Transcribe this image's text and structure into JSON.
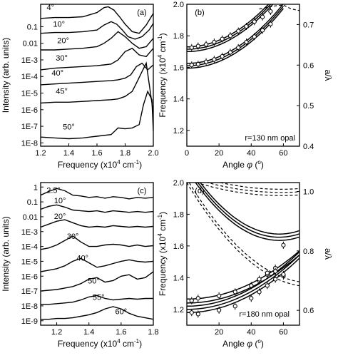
{
  "chart_data": [
    {
      "panel": "(a)",
      "type": "line",
      "xlabel": "Frequency (x10",
      "xlabel_sup": "4",
      "xlabel_unit": " cm",
      "xlabel_unit_sup": "-1",
      "xlabel_end": ")",
      "ylabel": "Intensity (arb. units)",
      "xlim": [
        1.2,
        2.0
      ],
      "ylim_log10": [
        -8.2,
        0.35
      ],
      "yscale": "log",
      "x_ticks": [
        "1.2",
        "1.4",
        "1.6",
        "1.8",
        "2.0"
      ],
      "y_ticks": [
        "0.1",
        "0.01",
        "1E-3",
        "1E-4",
        "1E-5",
        "1E-6",
        "1E-7",
        "1E-8"
      ],
      "series": [
        {
          "name": "4°",
          "x": [
            1.2,
            1.3,
            1.4,
            1.5,
            1.6,
            1.65,
            1.68,
            1.72,
            1.76,
            1.8,
            1.85,
            1.9,
            1.95,
            2.0
          ],
          "y_log10": [
            -0.5,
            -0.45,
            -0.45,
            -0.4,
            -0.15,
            0.15,
            0.2,
            0.0,
            -0.4,
            -0.85,
            -1.3,
            -1.4,
            -0.9,
            -0.2
          ]
        },
        {
          "name": "10°",
          "x": [
            1.2,
            1.3,
            1.4,
            1.5,
            1.6,
            1.65,
            1.7,
            1.74,
            1.78,
            1.82,
            1.87,
            1.92,
            1.97,
            2.0
          ],
          "y_log10": [
            -1.4,
            -1.35,
            -1.35,
            -1.3,
            -1.2,
            -0.9,
            -0.7,
            -0.85,
            -1.2,
            -1.6,
            -1.75,
            -1.6,
            -1.2,
            -0.8
          ]
        },
        {
          "name": "20°",
          "x": [
            1.2,
            1.3,
            1.4,
            1.5,
            1.6,
            1.65,
            1.7,
            1.75,
            1.8,
            1.85,
            1.9,
            1.95,
            2.0
          ],
          "y_log10": [
            -2.4,
            -2.4,
            -2.35,
            -2.3,
            -2.2,
            -2.0,
            -1.7,
            -1.3,
            -1.6,
            -2.0,
            -2.3,
            -2.2,
            -1.7
          ]
        },
        {
          "name": "30°",
          "x": [
            1.2,
            1.3,
            1.4,
            1.5,
            1.6,
            1.65,
            1.7,
            1.75,
            1.8,
            1.85,
            1.9,
            1.95,
            2.0
          ],
          "y_log10": [
            -3.6,
            -3.5,
            -3.45,
            -3.4,
            -3.35,
            -3.3,
            -3.25,
            -3.0,
            -2.5,
            -2.3,
            -2.7,
            -2.8,
            -2.3
          ]
        },
        {
          "name": "40°",
          "x": [
            1.2,
            1.3,
            1.4,
            1.5,
            1.6,
            1.7,
            1.75,
            1.8,
            1.84,
            1.88,
            1.92,
            1.96,
            2.0
          ],
          "y_log10": [
            -4.5,
            -4.45,
            -4.4,
            -4.35,
            -4.3,
            -4.25,
            -4.2,
            -4.1,
            -3.9,
            -3.4,
            -3.2,
            -3.6,
            -3.3
          ]
        },
        {
          "name": "45°",
          "x": [
            1.2,
            1.3,
            1.4,
            1.5,
            1.6,
            1.7,
            1.75,
            1.8,
            1.85,
            1.88,
            1.92,
            1.95,
            2.0
          ],
          "y_log10": [
            -5.6,
            -5.55,
            -5.55,
            -5.5,
            -5.45,
            -5.4,
            -5.35,
            -5.2,
            -4.9,
            -4.4,
            -3.7,
            -3.2,
            -6.2
          ]
        },
        {
          "name": "50°",
          "x": [
            1.2,
            1.3,
            1.4,
            1.5,
            1.6,
            1.7,
            1.75,
            1.8,
            1.85,
            1.9,
            1.93,
            1.96,
            1.99,
            2.0
          ],
          "y_log10": [
            -7.65,
            -7.7,
            -7.75,
            -7.7,
            -7.6,
            -7.5,
            -7.1,
            -7.15,
            -7.1,
            -6.9,
            -5.7,
            -4.9,
            -5.4,
            -7.3
          ]
        }
      ]
    },
    {
      "panel": "(b)",
      "type": "line",
      "xlabel": "Angle",
      "xlabel_phi": "φ",
      "xlabel_unit": "(",
      "xlabel_deg": "o",
      "xlabel_end": ")",
      "ylabel": "Frequency (x10",
      "ylabel_sup": "4",
      "ylabel_unit": " cm",
      "ylabel_unit_sup": "-1",
      "ylabel_end": ")",
      "y2label": "a/λ",
      "annotation": "r=130 nm opal",
      "xlim": [
        0,
        70
      ],
      "ylim": [
        1.1,
        2.0
      ],
      "y2lim": [
        0.4,
        0.75
      ],
      "x_ticks": [
        "0",
        "20",
        "40",
        "60"
      ],
      "y_ticks": [
        "1.2",
        "1.4",
        "1.6",
        "1.8",
        "2.0"
      ],
      "y2_ticks": [
        "0.4",
        "0.5",
        "0.6",
        "0.7"
      ],
      "upper_points": {
        "x": [
          3,
          7,
          12,
          17,
          22,
          27,
          32,
          37,
          42,
          47,
          52
        ],
        "y": [
          1.725,
          1.735,
          1.745,
          1.76,
          1.78,
          1.8,
          1.83,
          1.86,
          1.89,
          1.92,
          1.955
        ]
      },
      "lower_points": {
        "x": [
          3,
          7,
          12,
          17,
          22,
          27,
          32,
          37,
          42,
          47,
          52
        ],
        "y": [
          1.615,
          1.62,
          1.635,
          1.65,
          1.67,
          1.695,
          1.725,
          1.76,
          1.795,
          1.835,
          1.875
        ]
      },
      "curves_upper_y0": [
        1.7,
        1.715,
        1.73
      ],
      "curves_lower_y0": [
        1.595,
        1.61,
        1.625
      ],
      "dashed_top": {
        "x": [
          45,
          50,
          55,
          60,
          65,
          70
        ],
        "y": [
          1.97,
          1.98,
          1.99,
          1.995,
          1.97,
          1.96
        ]
      }
    },
    {
      "panel": "(c)",
      "type": "line",
      "xlabel": "Frequency (x10",
      "xlabel_sup": "4",
      "xlabel_unit": " cm",
      "xlabel_unit_sup": "-1",
      "xlabel_end": ")",
      "ylabel": "Intensity (arb. units)",
      "xlim": [
        1.1,
        1.8
      ],
      "ylim_log10": [
        -9.3,
        0.3
      ],
      "yscale": "log",
      "x_ticks": [
        "1.2",
        "1.4",
        "1.6",
        "1.8"
      ],
      "y_ticks": [
        "1",
        "0.1",
        "0.01",
        "1E-3",
        "1E-4",
        "1E-5",
        "1E-6",
        "1E-7",
        "1E-8",
        "1E-9"
      ],
      "series": [
        {
          "name": "2.5°",
          "x": [
            1.1,
            1.15,
            1.2,
            1.25,
            1.3,
            1.35,
            1.4,
            1.45,
            1.5,
            1.55,
            1.6,
            1.65,
            1.7,
            1.75,
            1.8
          ],
          "y_log10": [
            -0.55,
            -0.3,
            -0.1,
            -0.25,
            -0.55,
            -0.6,
            -0.7,
            -0.65,
            -0.75,
            -0.65,
            -0.7,
            -0.8,
            -0.7,
            -0.75,
            -0.7
          ]
        },
        {
          "name": "10°",
          "x": [
            1.1,
            1.15,
            1.2,
            1.25,
            1.3,
            1.35,
            1.4,
            1.45,
            1.5,
            1.55,
            1.6,
            1.65,
            1.7,
            1.75,
            1.8
          ],
          "y_log10": [
            -1.5,
            -1.3,
            -1.2,
            -1.35,
            -1.55,
            -1.6,
            -1.65,
            -1.6,
            -1.7,
            -1.6,
            -1.65,
            -1.7,
            -1.65,
            -1.7,
            -1.65
          ]
        },
        {
          "name": "20°",
          "x": [
            1.1,
            1.15,
            1.2,
            1.25,
            1.3,
            1.35,
            1.4,
            1.45,
            1.5,
            1.55,
            1.6,
            1.65,
            1.7,
            1.75,
            1.8
          ],
          "y_log10": [
            -2.7,
            -2.5,
            -2.3,
            -2.2,
            -2.4,
            -2.6,
            -2.7,
            -2.65,
            -2.7,
            -2.6,
            -2.65,
            -2.7,
            -2.65,
            -2.7,
            -2.65
          ]
        },
        {
          "name": "30°",
          "x": [
            1.1,
            1.15,
            1.2,
            1.25,
            1.3,
            1.35,
            1.4,
            1.45,
            1.5,
            1.55,
            1.6,
            1.65,
            1.7,
            1.75,
            1.8
          ],
          "y_log10": [
            -4.2,
            -4.1,
            -3.9,
            -3.6,
            -3.3,
            -3.7,
            -4.0,
            -4.0,
            -3.9,
            -3.85,
            -3.9,
            -4.0,
            -3.9,
            -4.0,
            -3.95
          ]
        },
        {
          "name": "40°",
          "x": [
            1.1,
            1.15,
            1.2,
            1.25,
            1.3,
            1.35,
            1.4,
            1.45,
            1.5,
            1.55,
            1.6,
            1.65,
            1.7,
            1.75,
            1.8
          ],
          "y_log10": [
            -5.7,
            -5.6,
            -5.5,
            -5.3,
            -5.0,
            -4.8,
            -5.1,
            -5.4,
            -5.3,
            -5.15,
            -5.0,
            -4.9,
            -5.0,
            -5.05,
            -5.0
          ]
        },
        {
          "name": "50°",
          "x": [
            1.1,
            1.15,
            1.2,
            1.25,
            1.3,
            1.35,
            1.4,
            1.45,
            1.5,
            1.55,
            1.6,
            1.65,
            1.7,
            1.75,
            1.8
          ],
          "y_log10": [
            -7.0,
            -6.95,
            -6.9,
            -6.8,
            -6.7,
            -6.5,
            -6.2,
            -6.1,
            -6.4,
            -6.3,
            -6.0,
            -5.9,
            -6.2,
            -6.1,
            -5.7
          ]
        },
        {
          "name": "55°",
          "x": [
            1.1,
            1.15,
            1.2,
            1.25,
            1.3,
            1.35,
            1.4,
            1.45,
            1.5,
            1.55,
            1.6,
            1.65,
            1.7,
            1.75,
            1.8
          ],
          "y_log10": [
            -7.9,
            -7.9,
            -7.85,
            -7.8,
            -7.75,
            -7.6,
            -7.4,
            -7.3,
            -7.5,
            -7.6,
            -7.55,
            -7.5,
            -7.55,
            -7.5,
            -7.5
          ]
        },
        {
          "name": "60°",
          "x": [
            1.1,
            1.15,
            1.2,
            1.25,
            1.3,
            1.35,
            1.4,
            1.45,
            1.5,
            1.55,
            1.6,
            1.65,
            1.7,
            1.75,
            1.8
          ],
          "y_log10": [
            -8.9,
            -8.9,
            -8.85,
            -8.85,
            -8.8,
            -8.7,
            -8.6,
            -8.45,
            -8.2,
            -8.05,
            -8.2,
            -8.5,
            -8.7,
            -8.8,
            -8.9
          ]
        }
      ]
    },
    {
      "panel": "(d)",
      "type": "line",
      "xlabel": "Angle",
      "xlabel_phi": "φ",
      "xlabel_unit": "(",
      "xlabel_deg": "o",
      "xlabel_end": ")",
      "ylabel": "Frequency (x10",
      "ylabel_sup": "4",
      "ylabel_unit": " cm",
      "ylabel_unit_sup": "-1",
      "ylabel_end": ")",
      "y2label": "a/λ",
      "annotation": "r=180 nm opal",
      "xlim": [
        0,
        70
      ],
      "ylim": [
        1.1,
        2.0
      ],
      "y2lim": [
        0.55,
        1.03
      ],
      "x_ticks": [
        "20",
        "40",
        "60"
      ],
      "y_ticks": [
        "1.2",
        "1.4",
        "1.6",
        "1.8",
        "2.0"
      ],
      "y2_ticks": [
        "0.6",
        "0.8",
        "1.0"
      ],
      "upper_points": {
        "x": [
          3,
          7,
          20,
          30,
          40,
          45,
          50,
          55,
          60
        ],
        "y": [
          1.255,
          1.27,
          1.285,
          1.31,
          1.35,
          1.38,
          1.42,
          1.46,
          1.605
        ]
      },
      "lower_points": {
        "x": [
          3,
          7,
          20,
          30,
          40,
          45,
          50,
          55,
          60
        ],
        "y": [
          1.18,
          1.17,
          1.195,
          1.22,
          1.27,
          1.31,
          1.35,
          1.39,
          1.41
        ]
      },
      "mid_points": {
        "x": [
          45,
          50,
          55,
          60
        ],
        "y": [
          1.39,
          1.43,
          1.44,
          1.42
        ]
      }
    }
  ]
}
